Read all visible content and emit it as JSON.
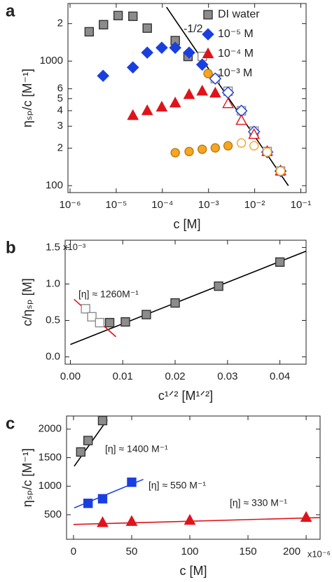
{
  "chart_data": [
    {
      "type": "scatter",
      "panel": "a",
      "xlabel": "c [M]",
      "ylabel": "ηₛₚ/c [M⁻¹]",
      "xlog": true,
      "ylog": true,
      "xlim": [
        9e-07,
        0.13
      ],
      "ylim": [
        88,
        2900
      ],
      "xticks": [
        {
          "value": 1e-06,
          "label": "10⁻⁶"
        },
        {
          "value": 1e-05,
          "label": "10⁻⁵"
        },
        {
          "value": 0.0001,
          "label": "10⁻⁴"
        },
        {
          "value": 0.001,
          "label": "10⁻³"
        },
        {
          "value": 0.01,
          "label": "10⁻²"
        },
        {
          "value": 0.1,
          "label": "10⁻¹"
        }
      ],
      "yticks": [
        100,
        {
          "value": 200,
          "label": "2"
        },
        {
          "value": 300,
          "label": "3"
        },
        {
          "value": 400,
          "label": "4"
        },
        {
          "value": 500,
          "label": "5"
        },
        {
          "value": 600,
          "label": "6"
        },
        1000,
        {
          "value": 2000,
          "label": "2"
        }
      ],
      "legend": "upper right",
      "series": [
        {
          "name": "DI water",
          "marker": "square",
          "color": "#8c8c8c",
          "edgecolor": "#333333",
          "x": [
            2.6e-06,
            5.3e-06,
            1.1e-05,
            2.3e-05,
            4.7e-05,
            0.00019,
            0.00036,
            0.00073,
            0.0014,
            0.00265,
            0.00515,
            0.0097,
            0.0187,
            0.0364
          ],
          "values": [
            1720,
            1960,
            2320,
            2290,
            1840,
            1460,
            1090,
            1090,
            724,
            573,
            399,
            274,
            188,
            131
          ],
          "filled": [
            true,
            true,
            true,
            true,
            true,
            true,
            true,
            false,
            false,
            false,
            false,
            false,
            false,
            false
          ]
        },
        {
          "name": "10⁻⁵ M",
          "marker": "diamond",
          "color": "#1a3fe0",
          "edgecolor": "#1a3fe0",
          "x": [
            5.2e-06,
            2.3e-05,
            4.7e-05,
            9.7e-05,
            0.00019,
            0.00038,
            0.00073,
            0.0014,
            0.00265,
            0.00515,
            0.0097,
            0.0187,
            0.0364
          ],
          "values": [
            762,
            890,
            1170,
            1280,
            1280,
            1170,
            937,
            724,
            559,
            399,
            271,
            186,
            131
          ],
          "filled": [
            true,
            true,
            true,
            true,
            true,
            true,
            true,
            false,
            false,
            false,
            false,
            false,
            false
          ]
        },
        {
          "name": "10⁻⁴ M",
          "marker": "triangle",
          "color": "#e0131b",
          "edgecolor": "#e0131b",
          "x": [
            2.3e-05,
            4.7e-05,
            9.7e-05,
            0.00019,
            0.00038,
            0.00073,
            0.0014,
            0.00265,
            0.00515,
            0.0097,
            0.0187,
            0.0364
          ],
          "values": [
            365,
            399,
            426,
            460,
            537,
            573,
            552,
            454,
            333,
            257,
            188,
            131
          ],
          "filled": [
            true,
            true,
            true,
            true,
            true,
            true,
            true,
            false,
            false,
            false,
            false,
            false
          ]
        },
        {
          "name": "10⁻³ M",
          "marker": "circle",
          "color": "#f5a623",
          "edgecolor": "#c07a10",
          "x": [
            0.00019,
            0.00038,
            0.00073,
            0.0014,
            0.00265,
            0.00515,
            0.0097,
            0.0187,
            0.0364
          ],
          "values": [
            184,
            188,
            196,
            201,
            209,
            220,
            209,
            186,
            131
          ],
          "filled": [
            true,
            true,
            true,
            true,
            true,
            false,
            false,
            false,
            false
          ]
        }
      ],
      "fit_lines": [
        {
          "color": "#000000",
          "x": [
            0.000123,
            0.0537
          ],
          "y": [
            2710,
            100
          ]
        }
      ],
      "annotations": [
        {
          "text": "-1/2",
          "color": "#000000"
        }
      ]
    },
    {
      "type": "scatter",
      "panel": "b",
      "xlabel": "c¹ᐟ² [M¹ᐟ²]",
      "ylabel": "c/ηₛₚ [M]",
      "xlog": false,
      "ylog": false,
      "xlim": [
        -0.001,
        0.045
      ],
      "ylim": [
        -0.0001,
        0.0016
      ],
      "xticks": [
        {
          "value": 0,
          "label": "0.00"
        },
        0.01,
        0.02,
        0.03,
        0.04
      ],
      "yticks": [
        {
          "value": 0,
          "label": "0.0"
        },
        {
          "value": 0.0005,
          "label": "0.5"
        },
        {
          "value": 0.001,
          "label": "1.0"
        },
        {
          "value": 0.0015,
          "label": "1.5"
        }
      ],
      "y_multiplier": "x10⁻³",
      "series": [
        {
          "marker": "square",
          "color": "#8c8c8c",
          "edgecolor": "#333333",
          "x": [
            0.0029,
            0.0041,
            0.0056,
            0.0075,
            0.0105,
            0.0145,
            0.02,
            0.0283,
            0.04
          ],
          "values": [
            0.00066,
            0.00055,
            0.00047,
            0.00047,
            0.00048,
            0.00058,
            0.00074,
            0.00097,
            0.0013
          ],
          "filled": [
            false,
            false,
            false,
            true,
            true,
            true,
            true,
            true,
            true
          ]
        }
      ],
      "fit_lines": [
        {
          "color": "#000000",
          "x": [
            0,
            0.045
          ],
          "y": [
            0.00017,
            0.00145
          ]
        },
        {
          "color": "#e0131b",
          "x": [
            0.0007,
            0.0087
          ],
          "y": [
            0.00079,
            0.000276
          ]
        }
      ],
      "annotations": [
        {
          "text": "[η] ≈ 1260M⁻¹",
          "color": "#e0131b"
        }
      ]
    },
    {
      "type": "scatter",
      "panel": "c",
      "xlabel": "c [M]",
      "ylabel": "ηₛₚ/c [M⁻¹]",
      "xlog": false,
      "ylog": false,
      "xlim": [
        -6e-06,
        0.000212
      ],
      "ylim": [
        70,
        2230
      ],
      "xticks": [
        0,
        {
          "value": 5e-05,
          "label": "50"
        },
        {
          "value": 0.0001,
          "label": "100"
        },
        {
          "value": 0.00015,
          "label": "150"
        },
        {
          "value": 0.0002,
          "label": "200"
        }
      ],
      "x_multiplier": "x10⁻⁶",
      "yticks": [
        500,
        1000,
        1500,
        2000
      ],
      "series": [
        {
          "marker": "square",
          "color": "#8c8c8c",
          "edgecolor": "#333333",
          "x": [
            6.25e-06,
            1.25e-05,
            2.5e-05
          ],
          "values": [
            1600,
            1800,
            2150
          ],
          "filled": [
            true,
            true,
            true
          ]
        },
        {
          "marker": "square",
          "color": "#1a3fe0",
          "edgecolor": "#1a3fe0",
          "x": [
            1.25e-05,
            2.5e-05,
            5e-05
          ],
          "values": [
            700,
            780,
            1070
          ],
          "filled": [
            true,
            true,
            true
          ]
        },
        {
          "marker": "triangle",
          "color": "#e0131b",
          "edgecolor": "#e0131b",
          "x": [
            2.5e-05,
            5e-05,
            0.0001,
            0.0002
          ],
          "values": [
            360,
            380,
            400,
            450
          ],
          "filled": [
            true,
            true,
            true,
            true
          ]
        }
      ],
      "fit_lines": [
        {
          "color": "#000000",
          "x": [
            6e-07,
            2.9e-05
          ],
          "y": [
            1350,
            2165
          ]
        },
        {
          "color": "#1a3fe0",
          "x": [
            6e-07,
            6e-05
          ],
          "y": [
            620,
            1120
          ]
        },
        {
          "color": "#e0131b",
          "x": [
            0,
            0.000212
          ],
          "y": [
            330,
            450
          ]
        }
      ],
      "annotations": [
        {
          "text": "[η] ≈ 1400 M⁻¹",
          "color": "#000000"
        },
        {
          "text": "[η] ≈ 550 M⁻¹",
          "color": "#1a3fe0"
        },
        {
          "text": "[η] ≈ 330 M⁻¹",
          "color": "#e0131b"
        }
      ]
    }
  ]
}
